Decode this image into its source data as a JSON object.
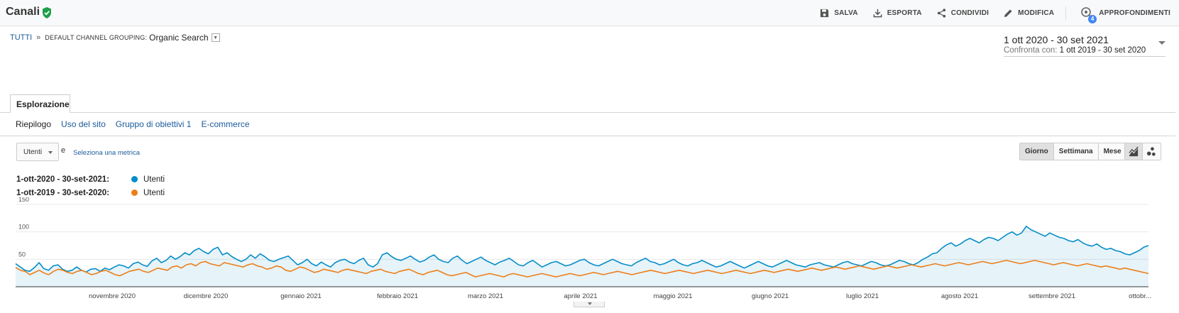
{
  "header": {
    "title": "Canali",
    "actions": [
      {
        "label": "SALVA",
        "icon": "save-icon"
      },
      {
        "label": "ESPORTA",
        "icon": "download-icon"
      },
      {
        "label": "CONDIVIDI",
        "icon": "share-icon"
      },
      {
        "label": "MODIFICA",
        "icon": "pencil-icon"
      },
      {
        "label": "APPROFONDIMENTI",
        "icon": "insights-icon",
        "badge": "4"
      }
    ]
  },
  "breadcrumb": {
    "root": "TUTTI",
    "separator": "»",
    "dimension": "DEFAULT CHANNEL GROUPING:",
    "value": "Organic Search"
  },
  "daterange": {
    "main": "1 ott 2020 - 30 set 2021",
    "compare_label": "Confronta con:",
    "compare_value": "1 ott 2019 - 30 set 2020"
  },
  "tabs": {
    "main": "Esplorazione",
    "sub": [
      "Riepilogo",
      "Uso del sito",
      "Gruppo di obiettivi 1",
      "E-commerce"
    ]
  },
  "controls": {
    "metric": "Utenti",
    "and": "e",
    "select_metric": "Seleziona una metrica",
    "granularity": [
      "Giorno",
      "Settimana",
      "Mese"
    ],
    "granularity_selected": "Giorno"
  },
  "legend": [
    {
      "range": "1-ott-2020 - 30-set-2021:",
      "name": "Utenti",
      "color": "#058dc7"
    },
    {
      "range": "1-ott-2019 - 30-set-2020:",
      "name": "Utenti",
      "color": "#ed7e17"
    }
  ],
  "chart_data": {
    "type": "line",
    "ylim": [
      0,
      150
    ],
    "y_ticks": [
      "150",
      "100",
      "50"
    ],
    "x_tick_labels": [
      "novembre 2020",
      "dicembre 2020",
      "gennaio 2021",
      "febbraio 2021",
      "marzo 2021",
      "aprile 2021",
      "maggio 2021",
      "giugno 2021",
      "luglio 2021",
      "agosto 2021",
      "settembre 2021",
      "ottobr..."
    ],
    "series": [
      {
        "name": "Utenti",
        "color": "#058dc7",
        "fill": true,
        "values": [
          42,
          36,
          30,
          28,
          35,
          44,
          33,
          30,
          38,
          40,
          32,
          28,
          30,
          36,
          30,
          27,
          32,
          33,
          28,
          34,
          31,
          36,
          40,
          38,
          34,
          42,
          45,
          40,
          37,
          47,
          52,
          44,
          48,
          56,
          50,
          55,
          62,
          58,
          66,
          70,
          64,
          60,
          68,
          72,
          58,
          62,
          55,
          50,
          46,
          50,
          58,
          52,
          60,
          55,
          48,
          46,
          50,
          53,
          56,
          48,
          40,
          44,
          50,
          42,
          38,
          45,
          40,
          36,
          44,
          48,
          50,
          45,
          42,
          48,
          52,
          40,
          36,
          42,
          58,
          62,
          55,
          50,
          48,
          52,
          56,
          50,
          45,
          48,
          54,
          58,
          50,
          46,
          44,
          52,
          56,
          48,
          42,
          46,
          50,
          54,
          48,
          44,
          40,
          45,
          48,
          52,
          46,
          40,
          38,
          44,
          48,
          42,
          36,
          40,
          44,
          46,
          42,
          38,
          40,
          44,
          48,
          50,
          44,
          40,
          38,
          42,
          46,
          50,
          46,
          42,
          40,
          38,
          44,
          48,
          52,
          46,
          44,
          40,
          42,
          46,
          50,
          44,
          40,
          38,
          42,
          44,
          48,
          44,
          40,
          36,
          38,
          42,
          46,
          42,
          38,
          34,
          38,
          42,
          46,
          42,
          38,
          36,
          40,
          44,
          48,
          44,
          40,
          38,
          36,
          40,
          42,
          44,
          40,
          38,
          36,
          40,
          44,
          46,
          42,
          40,
          38,
          42,
          46,
          44,
          40,
          38,
          40,
          44,
          48,
          46,
          42,
          40,
          44,
          50,
          54,
          60,
          62,
          70,
          76,
          80,
          74,
          78,
          84,
          88,
          84,
          80,
          86,
          90,
          88,
          84,
          90,
          96,
          100,
          94,
          98,
          110,
          104,
          100,
          96,
          92,
          98,
          94,
          90,
          88,
          84,
          82,
          86,
          80,
          76,
          74,
          78,
          72,
          68,
          70,
          66,
          64,
          60,
          58,
          62,
          66,
          72,
          75
        ]
      },
      {
        "name": "Utenti",
        "color": "#ed7e17",
        "fill": false,
        "values": [
          35,
          30,
          28,
          22,
          26,
          30,
          25,
          22,
          28,
          32,
          30,
          26,
          24,
          28,
          30,
          26,
          22,
          24,
          28,
          30,
          26,
          22,
          20,
          24,
          28,
          30,
          32,
          28,
          26,
          30,
          34,
          32,
          30,
          36,
          38,
          34,
          40,
          42,
          38,
          44,
          46,
          42,
          40,
          38,
          44,
          42,
          40,
          38,
          36,
          40,
          42,
          38,
          36,
          32,
          34,
          38,
          36,
          30,
          28,
          32,
          36,
          34,
          30,
          26,
          28,
          32,
          30,
          28,
          26,
          30,
          32,
          30,
          28,
          26,
          24,
          28,
          30,
          32,
          28,
          26,
          24,
          28,
          30,
          32,
          28,
          24,
          22,
          26,
          28,
          30,
          26,
          22,
          20,
          22,
          24,
          26,
          22,
          18,
          20,
          22,
          24,
          22,
          20,
          18,
          22,
          24,
          22,
          20,
          18,
          20,
          22,
          24,
          22,
          20,
          18,
          20,
          22,
          24,
          22,
          20,
          22,
          24,
          26,
          24,
          22,
          24,
          26,
          28,
          26,
          24,
          22,
          24,
          26,
          28,
          30,
          28,
          26,
          24,
          26,
          28,
          30,
          28,
          26,
          24,
          26,
          28,
          30,
          28,
          26,
          24,
          26,
          28,
          30,
          28,
          26,
          24,
          26,
          28,
          30,
          28,
          26,
          28,
          30,
          32,
          30,
          28,
          30,
          32,
          34,
          32,
          30,
          32,
          34,
          36,
          34,
          32,
          34,
          36,
          38,
          36,
          34,
          32,
          34,
          36,
          38,
          36,
          34,
          36,
          38,
          40,
          38,
          36,
          38,
          40,
          42,
          40,
          38,
          40,
          42,
          44,
          42,
          40,
          42,
          44,
          46,
          44,
          42,
          44,
          46,
          48,
          46,
          44,
          42,
          44,
          46,
          48,
          46,
          44,
          42,
          40,
          42,
          44,
          42,
          40,
          38,
          40,
          42,
          40,
          38,
          36,
          38,
          36,
          34,
          32,
          34,
          32,
          30,
          28,
          26,
          24
        ]
      }
    ]
  }
}
